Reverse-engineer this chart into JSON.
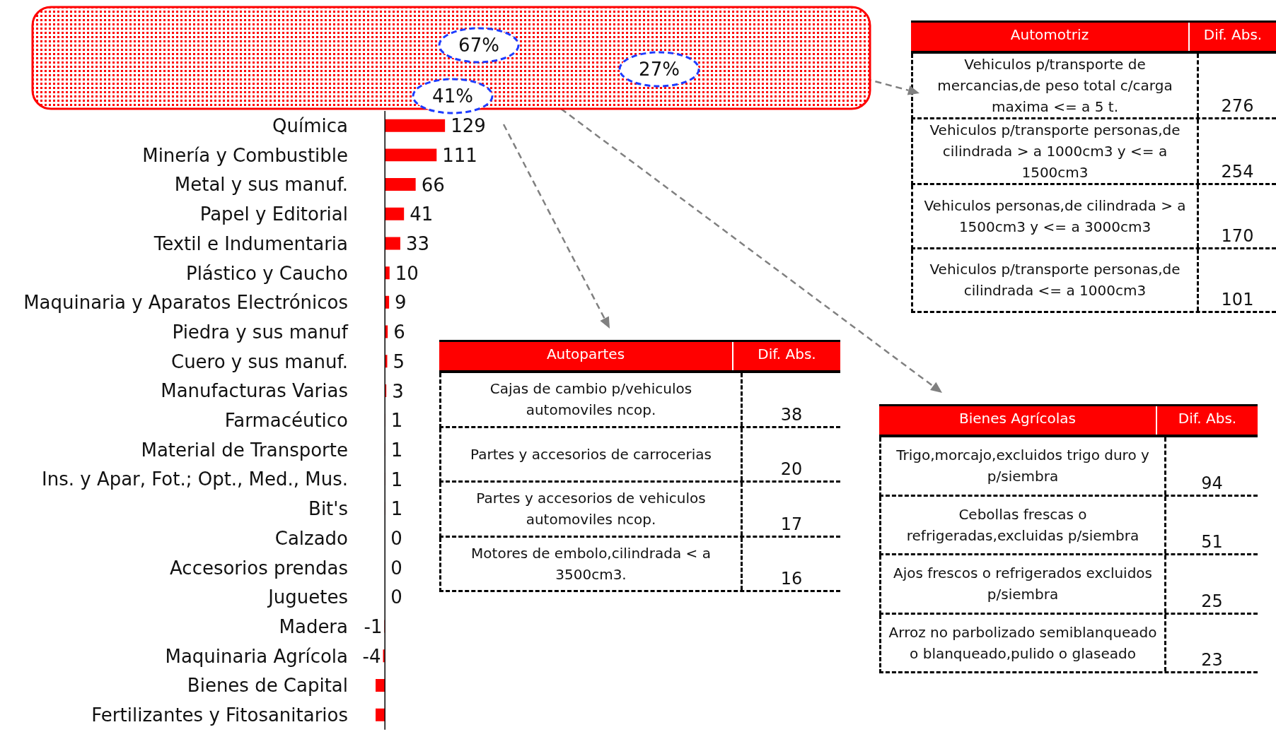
{
  "chart_data": [
    {
      "type": "bar",
      "orientation": "horizontal",
      "color": "#ff0000",
      "categories": [
        "Química",
        "Minería y Combustible",
        "Metal y sus manuf.",
        "Papel y Editorial",
        "Textil e Indumentaria",
        "Plástico y Caucho",
        "Maquinaria y Aparatos Electrónicos",
        "Piedra y sus manuf",
        "Cuero y sus manuf.",
        "Manufacturas Varias",
        "Farmacéutico",
        "Material de Transporte",
        "Ins. y Apar, Fot.; Opt., Med., Mus.",
        "Bit's",
        "Calzado",
        "Accesorios prendas",
        "Juguetes",
        "Madera",
        "Maquinaria Agrícola",
        "Bienes de Capital",
        "Fertilizantes y Fitosanitarios"
      ],
      "values": [
        129,
        111,
        66,
        41,
        33,
        10,
        9,
        6,
        5,
        3,
        1,
        1,
        1,
        1,
        0,
        0,
        0,
        -1,
        -4,
        -20,
        -20
      ],
      "value_labels": [
        "129",
        "111",
        "66",
        "41",
        "33",
        "10",
        "9",
        "6",
        "5",
        "3",
        "1",
        "1",
        "1",
        "1",
        "0",
        "0",
        "0",
        "-1",
        "-4",
        null,
        null
      ],
      "annotations": [
        "67%",
        "41%",
        "27%"
      ]
    },
    {
      "type": "other",
      "title": "Automotriz",
      "ylabel": "Dif. Abs.",
      "categories": [
        "Vehiculos p/transporte de mercancias,de peso total c/carga maxima <= a 5 t.",
        "Vehiculos p/transporte personas,de cilindrada > a 1000cm3 y <= a 1500cm3",
        "Vehiculos personas,de cilindrada > a 1500cm3  y <= a 3000cm3",
        "Vehiculos p/transporte personas,de cilindrada <= a 1000cm3"
      ],
      "values": [
        276,
        254,
        170,
        101
      ],
      "data_labels": true
    },
    {
      "type": "other",
      "title": "Autopartes",
      "ylabel": "Dif. Abs.",
      "categories": [
        "Cajas de cambio p/vehiculos automoviles ncop.",
        "Partes y accesorios de carrocerias",
        "Partes y accesorios de vehiculos automoviles ncop.",
        "Motores de embolo,cilindrada < a 3500cm3."
      ],
      "values": [
        38,
        20,
        17,
        16
      ],
      "data_labels": true
    },
    {
      "type": "other",
      "title": "Bienes Agrícolas",
      "ylabel": "Dif. Abs.",
      "categories": [
        "Trigo,morcajo,excluidos trigo duro y p/siembra",
        "Cebollas frescas o refrigeradas,excluidas p/siembra",
        "Ajos frescos o refrigerados excluidos p/siembra",
        "Arroz no parbolizado semiblanqueado o blanqueado,pulido o glaseado"
      ],
      "values": [
        94,
        51,
        25,
        23
      ],
      "data_labels": true
    }
  ]
}
